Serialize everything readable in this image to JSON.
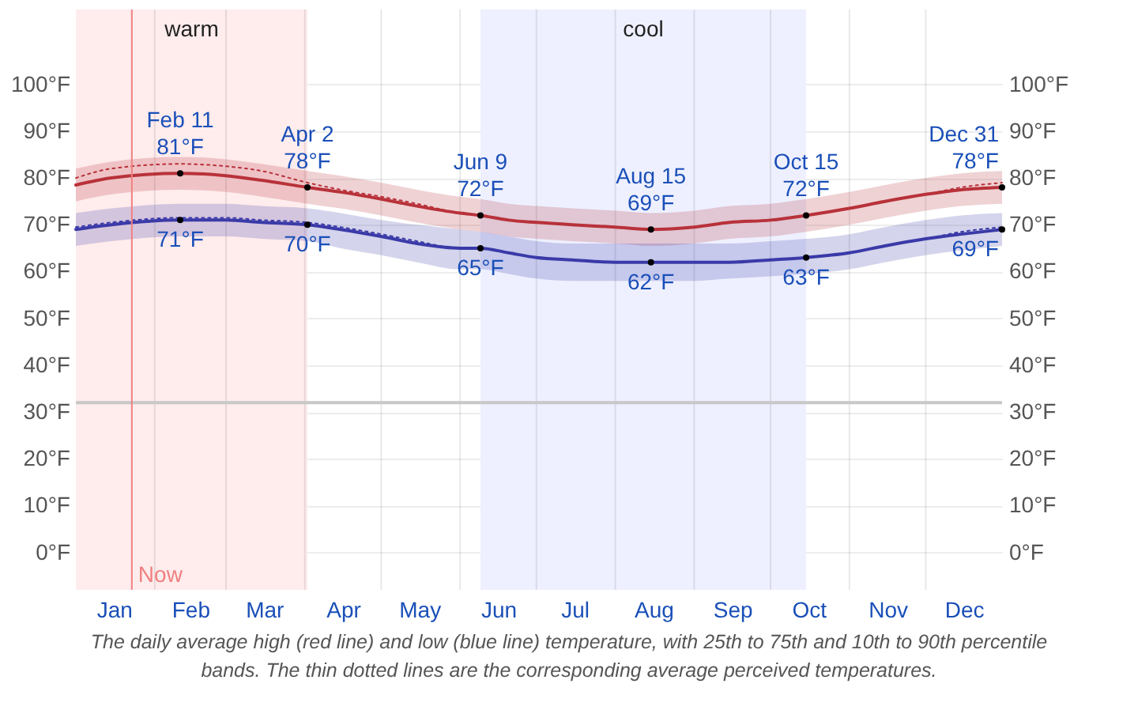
{
  "chart_data": {
    "type": "line",
    "x": [
      "--01-01",
      "--01-15",
      "--02-11",
      "--03-01",
      "--03-15",
      "--04-02",
      "--04-15",
      "--05-01",
      "--05-15",
      "--06-01",
      "--06-09",
      "--06-20",
      "--07-01",
      "--07-15",
      "--08-01",
      "--08-15",
      "--09-01",
      "--09-15",
      "--10-01",
      "--10-15",
      "--11-01",
      "--11-15",
      "--12-01",
      "--12-15",
      "--12-31"
    ],
    "series": [
      {
        "color": "#b8323a",
        "values": [
          78.5,
          80,
          81,
          80.5,
          79.5,
          78,
          77,
          75.5,
          74,
          72.5,
          72,
          71,
          70.5,
          70,
          69.5,
          69,
          69.5,
          70.5,
          71,
          72,
          73.5,
          75,
          76.5,
          77.5,
          78
        ],
        "lower": [
          75,
          76.5,
          77.5,
          77,
          76,
          74.5,
          73.5,
          72,
          70.5,
          69,
          68.5,
          67.5,
          67,
          66.5,
          66,
          65.5,
          66,
          67,
          67.5,
          68.5,
          70,
          71.5,
          73,
          74,
          74.5
        ],
        "upper": [
          82,
          83.5,
          84.5,
          84,
          83,
          81.5,
          80.5,
          79,
          77.5,
          76,
          75.5,
          74.5,
          74,
          73.5,
          73,
          72.5,
          73,
          74,
          74.5,
          75.5,
          77,
          78.5,
          80,
          81,
          81.5
        ]
      },
      {
        "color": "#3a3aa8",
        "values": [
          69,
          70,
          71,
          71,
          70.5,
          70,
          69,
          67.5,
          66,
          65,
          65,
          64,
          63,
          62.5,
          62,
          62,
          62,
          62,
          62.5,
          63,
          64,
          65.5,
          67,
          68,
          69
        ],
        "lower": [
          65.5,
          66.5,
          67.5,
          67.5,
          67,
          66.5,
          65,
          63.5,
          62,
          60.5,
          60.5,
          59.5,
          58.5,
          58,
          58,
          58,
          58,
          58.5,
          59,
          59.5,
          60.5,
          62,
          63.5,
          64.5,
          65.5
        ],
        "upper": [
          72.5,
          73.5,
          74.5,
          74.5,
          74,
          73.5,
          72.5,
          71,
          70,
          69,
          68.5,
          67.5,
          66.5,
          66,
          66,
          66,
          66,
          66,
          66.5,
          67,
          68,
          69.5,
          71,
          72,
          72.5
        ]
      },
      {
        "color": "#b8323a",
        "line_style": "dotted",
        "values": [
          80,
          82,
          83,
          82.5,
          81.5,
          79,
          77.5,
          76,
          74.5,
          72.5,
          72,
          71,
          70.5,
          70,
          69.5,
          69,
          69.5,
          70.5,
          71,
          72,
          73.5,
          75,
          76.5,
          78,
          79
        ]
      },
      {
        "color": "#3a3aa8",
        "line_style": "dotted",
        "values": [
          69.5,
          70.5,
          71.5,
          71.5,
          71,
          70.5,
          69.5,
          68,
          66.5,
          65,
          65,
          64,
          63,
          62.5,
          62,
          62,
          62,
          62,
          62.5,
          63,
          64,
          65.5,
          67,
          68.5,
          69.5
        ]
      }
    ],
    "xlim": [
      "--01-01",
      "--12-31"
    ],
    "xticks": [
      {
        "value": "--01-16",
        "label": "Jan"
      },
      {
        "value": "--02-01",
        "label": null
      },
      {
        "value": "--02-15",
        "label": "Feb"
      },
      {
        "value": "--03-01",
        "label": null
      },
      {
        "value": "--03-16",
        "label": "Mar"
      },
      {
        "value": "--04-01",
        "label": null
      },
      {
        "value": "--04-16",
        "label": "Apr"
      },
      {
        "value": "--05-01",
        "label": null
      },
      {
        "value": "--05-16",
        "label": "May"
      },
      {
        "value": "--06-01",
        "label": null
      },
      {
        "value": "--06-16",
        "label": "Jun"
      },
      {
        "value": "--07-01",
        "label": null
      },
      {
        "value": "--07-16",
        "label": "Jul"
      },
      {
        "value": "--08-01",
        "label": null
      },
      {
        "value": "--08-16",
        "label": "Aug"
      },
      {
        "value": "--09-01",
        "label": null
      },
      {
        "value": "--09-16",
        "label": "Sep"
      },
      {
        "value": "--10-01",
        "label": null
      },
      {
        "value": "--10-16",
        "label": "Oct"
      },
      {
        "value": "--11-01",
        "label": null
      },
      {
        "value": "--11-16",
        "label": "Nov"
      },
      {
        "value": "--12-01",
        "label": null
      },
      {
        "value": "--12-16",
        "label": "Dec"
      }
    ],
    "ylim": [
      -8,
      116
    ],
    "yticks": [
      {
        "value": 0,
        "label": "0°F"
      },
      {
        "value": 10,
        "label": "10°F"
      },
      {
        "value": 20,
        "label": "20°F"
      },
      {
        "value": 30,
        "label": "30°F"
      },
      {
        "value": 40,
        "label": "40°F"
      },
      {
        "value": 50,
        "label": "50°F"
      },
      {
        "value": 60,
        "label": "60°F"
      },
      {
        "value": 70,
        "label": "70°F"
      },
      {
        "value": 80,
        "label": "80°F"
      },
      {
        "value": 90,
        "label": "90°F"
      },
      {
        "value": 100,
        "label": "100°F"
      }
    ],
    "y2lim": [
      -8,
      116
    ],
    "y2ticks": [
      {
        "value": 0,
        "label": "0°F"
      },
      {
        "value": 10,
        "label": "10°F"
      },
      {
        "value": 20,
        "label": "20°F"
      },
      {
        "value": 30,
        "label": "30°F"
      },
      {
        "value": 40,
        "label": "40°F"
      },
      {
        "value": 50,
        "label": "50°F"
      },
      {
        "value": 60,
        "label": "60°F"
      },
      {
        "value": 70,
        "label": "70°F"
      },
      {
        "value": 80,
        "label": "80°F"
      },
      {
        "value": 90,
        "label": "90°F"
      },
      {
        "value": 100,
        "label": "100°F"
      }
    ],
    "grid": true,
    "bands": [
      {
        "axis": "x",
        "from": "--01-01",
        "to": "--04-02",
        "label": "warm",
        "color": "#ffeced"
      },
      {
        "axis": "x",
        "from": "--06-09",
        "to": "--10-15",
        "label": "cool",
        "color": "#eef0ff"
      }
    ],
    "ref_lines": [
      {
        "axis": "y",
        "value": 32,
        "color": "#c8c8c8"
      },
      {
        "axis": "x",
        "value": "--01-23",
        "label": "Now",
        "color": "#f08080"
      }
    ],
    "annotations": [
      {
        "text": "Feb 11\n81°F",
        "x": "--02-11",
        "y": 81
      },
      {
        "text": "Apr 2\n78°F",
        "x": "--04-02",
        "y": 78
      },
      {
        "text": "Jun 9\n72°F",
        "x": "--06-09",
        "y": 72
      },
      {
        "text": "Aug 15\n69°F",
        "x": "--08-15",
        "y": 69
      },
      {
        "text": "Oct 15\n72°F",
        "x": "--10-15",
        "y": 72
      },
      {
        "text": "Dec 31\n78°F",
        "x": "--12-31",
        "y": 78
      },
      {
        "text": "71°F",
        "x": "--02-11",
        "y": 71
      },
      {
        "text": "70°F",
        "x": "--04-02",
        "y": 70
      },
      {
        "text": "65°F",
        "x": "--06-09",
        "y": 65
      },
      {
        "text": "62°F",
        "x": "--08-15",
        "y": 62
      },
      {
        "text": "63°F",
        "x": "--10-15",
        "y": 63
      },
      {
        "text": "69°F",
        "x": "--12-31",
        "y": 69
      },
      "The daily average high (red line) and low (blue line) temperature, with 25th to 75th and 10th to 90th percentile bands. The thin dotted lines are the corresponding average perceived temperatures."
    ]
  }
}
